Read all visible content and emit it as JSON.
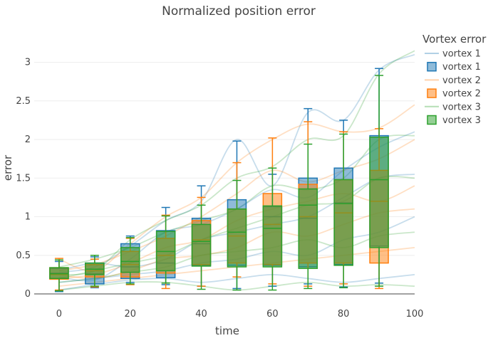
{
  "chart_data": {
    "type": "box",
    "title": "Normalized position error",
    "xlabel": "time",
    "ylabel": "error",
    "xlim": [
      -7,
      100
    ],
    "ylim": [
      0,
      3.3
    ],
    "x_ticks": [
      0,
      20,
      40,
      60,
      80,
      100
    ],
    "y_ticks": [
      0,
      0.5,
      1,
      1.5,
      2,
      2.5,
      3
    ],
    "grid": true,
    "legend": {
      "title": "Vortex error",
      "position": "top-right",
      "items": [
        {
          "label": "vortex 1",
          "kind": "line",
          "color": "#1f77b4"
        },
        {
          "label": "vortex 1",
          "kind": "box",
          "color": "#1f77b4"
        },
        {
          "label": "vortex 2",
          "kind": "line",
          "color": "#ff7f0e"
        },
        {
          "label": "vortex 2",
          "kind": "box",
          "color": "#ff7f0e"
        },
        {
          "label": "vortex 3",
          "kind": "line",
          "color": "#2ca02c"
        },
        {
          "label": "vortex 3",
          "kind": "box",
          "color": "#2ca02c"
        }
      ]
    },
    "series": [
      {
        "name": "vortex 1",
        "color": "#1f77b4",
        "boxes": [
          {
            "x": 0,
            "lower": 0.03,
            "q1": 0.2,
            "median": 0.27,
            "q3": 0.33,
            "upper": 0.42
          },
          {
            "x": 10,
            "lower": 0.08,
            "q1": 0.13,
            "median": 0.26,
            "q3": 0.4,
            "upper": 0.48
          },
          {
            "x": 20,
            "lower": 0.15,
            "q1": 0.2,
            "median": 0.35,
            "q3": 0.65,
            "upper": 0.75
          },
          {
            "x": 30,
            "lower": 0.12,
            "q1": 0.21,
            "median": 0.4,
            "q3": 0.82,
            "upper": 1.12
          },
          {
            "x": 40,
            "lower": 0.1,
            "q1": 0.37,
            "median": 0.65,
            "q3": 0.98,
            "upper": 1.4
          },
          {
            "x": 50,
            "lower": 0.07,
            "q1": 0.37,
            "median": 0.8,
            "q3": 1.22,
            "upper": 1.98
          },
          {
            "x": 60,
            "lower": 0.1,
            "q1": 0.37,
            "median": 1.0,
            "q3": 1.13,
            "upper": 1.55
          },
          {
            "x": 70,
            "lower": 0.13,
            "q1": 0.35,
            "median": 0.98,
            "q3": 1.5,
            "upper": 2.4
          },
          {
            "x": 80,
            "lower": 0.09,
            "q1": 0.38,
            "median": 1.18,
            "q3": 1.63,
            "upper": 2.25
          },
          {
            "x": 90,
            "lower": 0.14,
            "q1": 0.62,
            "median": 1.48,
            "q3": 2.05,
            "upper": 2.92
          }
        ],
        "traces": [
          {
            "x": [
              0,
              10,
              20,
              30,
              40,
              50,
              60,
              70,
              80,
              90,
              100
            ],
            "y": [
              0.28,
              0.35,
              0.62,
              0.95,
              1.2,
              2.0,
              1.4,
              2.35,
              2.25,
              2.9,
              3.1
            ]
          },
          {
            "x": [
              0,
              10,
              20,
              30,
              40,
              50,
              60,
              70,
              80,
              90,
              100
            ],
            "y": [
              0.22,
              0.18,
              0.45,
              0.8,
              0.9,
              1.1,
              1.35,
              1.25,
              1.6,
              1.9,
              2.1
            ]
          },
          {
            "x": [
              0,
              10,
              20,
              30,
              40,
              50,
              60,
              70,
              80,
              90,
              100
            ],
            "y": [
              0.3,
              0.4,
              0.35,
              0.45,
              0.7,
              0.8,
              0.9,
              1.0,
              1.25,
              1.5,
              1.55
            ]
          },
          {
            "x": [
              0,
              10,
              20,
              30,
              40,
              50,
              60,
              70,
              80,
              90,
              100
            ],
            "y": [
              0.15,
              0.2,
              0.25,
              0.3,
              0.4,
              0.45,
              0.55,
              0.5,
              0.7,
              0.8,
              1.0
            ]
          },
          {
            "x": [
              0,
              10,
              20,
              30,
              40,
              50,
              60,
              70,
              80,
              90,
              100
            ],
            "y": [
              0.05,
              0.12,
              0.18,
              0.2,
              0.15,
              0.2,
              0.25,
              0.2,
              0.15,
              0.2,
              0.25
            ]
          }
        ]
      },
      {
        "name": "vortex 2",
        "color": "#ff7f0e",
        "boxes": [
          {
            "x": 0,
            "lower": 0.05,
            "q1": 0.19,
            "median": 0.25,
            "q3": 0.34,
            "upper": 0.46
          },
          {
            "x": 10,
            "lower": 0.09,
            "q1": 0.22,
            "median": 0.3,
            "q3": 0.38,
            "upper": 0.45
          },
          {
            "x": 20,
            "lower": 0.12,
            "q1": 0.22,
            "median": 0.38,
            "q3": 0.55,
            "upper": 0.72
          },
          {
            "x": 30,
            "lower": 0.07,
            "q1": 0.27,
            "median": 0.5,
            "q3": 0.72,
            "upper": 1.02
          },
          {
            "x": 40,
            "lower": 0.1,
            "q1": 0.38,
            "median": 0.7,
            "q3": 0.95,
            "upper": 1.25
          },
          {
            "x": 50,
            "lower": 0.22,
            "q1": 0.4,
            "median": 0.75,
            "q3": 1.1,
            "upper": 1.7
          },
          {
            "x": 60,
            "lower": 0.13,
            "q1": 0.38,
            "median": 0.9,
            "q3": 1.3,
            "upper": 2.02
          },
          {
            "x": 70,
            "lower": 0.1,
            "q1": 0.4,
            "median": 1.0,
            "q3": 1.42,
            "upper": 2.23
          },
          {
            "x": 80,
            "lower": 0.13,
            "q1": 0.4,
            "median": 1.05,
            "q3": 1.48,
            "upper": 2.1
          },
          {
            "x": 90,
            "lower": 0.07,
            "q1": 0.4,
            "median": 1.2,
            "q3": 1.6,
            "upper": 2.14
          }
        ],
        "traces": [
          {
            "x": [
              0,
              10,
              20,
              30,
              40,
              50,
              60,
              70,
              80,
              90,
              100
            ],
            "y": [
              0.45,
              0.3,
              0.65,
              1.0,
              1.25,
              1.7,
              2.0,
              2.2,
              2.1,
              2.15,
              2.45
            ]
          },
          {
            "x": [
              0,
              10,
              20,
              30,
              40,
              50,
              60,
              70,
              80,
              90,
              100
            ],
            "y": [
              0.3,
              0.38,
              0.55,
              0.75,
              1.0,
              1.3,
              1.6,
              1.45,
              1.6,
              1.75,
              2.0
            ]
          },
          {
            "x": [
              0,
              10,
              20,
              30,
              40,
              50,
              60,
              70,
              80,
              90,
              100
            ],
            "y": [
              0.2,
              0.25,
              0.4,
              0.6,
              0.7,
              0.95,
              1.1,
              1.2,
              1.3,
              1.2,
              1.4
            ]
          },
          {
            "x": [
              0,
              10,
              20,
              30,
              40,
              50,
              60,
              70,
              80,
              90,
              100
            ],
            "y": [
              0.25,
              0.2,
              0.3,
              0.45,
              0.5,
              0.6,
              0.8,
              0.75,
              0.9,
              1.05,
              1.1
            ]
          },
          {
            "x": [
              0,
              10,
              20,
              30,
              40,
              50,
              60,
              70,
              80,
              90,
              100
            ],
            "y": [
              0.1,
              0.15,
              0.2,
              0.25,
              0.3,
              0.35,
              0.4,
              0.45,
              0.5,
              0.55,
              0.6
            ]
          }
        ]
      },
      {
        "name": "vortex 3",
        "color": "#2ca02c",
        "boxes": [
          {
            "x": 0,
            "lower": 0.04,
            "q1": 0.2,
            "median": 0.26,
            "q3": 0.34,
            "upper": 0.44
          },
          {
            "x": 10,
            "lower": 0.1,
            "q1": 0.25,
            "median": 0.32,
            "q3": 0.4,
            "upper": 0.5
          },
          {
            "x": 20,
            "lower": 0.13,
            "q1": 0.28,
            "median": 0.42,
            "q3": 0.6,
            "upper": 0.73
          },
          {
            "x": 30,
            "lower": 0.14,
            "q1": 0.3,
            "median": 0.55,
            "q3": 0.81,
            "upper": 1.01
          },
          {
            "x": 40,
            "lower": 0.06,
            "q1": 0.36,
            "median": 0.68,
            "q3": 0.9,
            "upper": 1.15
          },
          {
            "x": 50,
            "lower": 0.05,
            "q1": 0.35,
            "median": 0.8,
            "q3": 1.1,
            "upper": 1.47
          },
          {
            "x": 60,
            "lower": 0.05,
            "q1": 0.35,
            "median": 0.85,
            "q3": 1.14,
            "upper": 1.63
          },
          {
            "x": 70,
            "lower": 0.07,
            "q1": 0.33,
            "median": 1.15,
            "q3": 1.36,
            "upper": 1.94
          },
          {
            "x": 80,
            "lower": 0.08,
            "q1": 0.37,
            "median": 1.17,
            "q3": 1.48,
            "upper": 2.07
          },
          {
            "x": 90,
            "lower": 0.1,
            "q1": 0.6,
            "median": 1.48,
            "q3": 2.03,
            "upper": 2.83
          }
        ],
        "traces": [
          {
            "x": [
              0,
              10,
              20,
              30,
              40,
              50,
              60,
              70,
              80,
              90,
              100
            ],
            "y": [
              0.25,
              0.3,
              0.7,
              0.95,
              1.15,
              1.5,
              1.65,
              2.0,
              2.05,
              2.85,
              3.15
            ]
          },
          {
            "x": [
              0,
              10,
              20,
              30,
              40,
              50,
              60,
              70,
              80,
              90,
              100
            ],
            "y": [
              0.35,
              0.45,
              0.6,
              0.8,
              0.95,
              1.1,
              1.4,
              1.35,
              1.5,
              2.0,
              2.05
            ]
          },
          {
            "x": [
              0,
              10,
              20,
              30,
              40,
              50,
              60,
              70,
              80,
              90,
              100
            ],
            "y": [
              0.2,
              0.3,
              0.4,
              0.5,
              0.7,
              0.85,
              1.0,
              1.15,
              1.2,
              1.5,
              1.5
            ]
          },
          {
            "x": [
              0,
              10,
              20,
              30,
              40,
              50,
              60,
              70,
              80,
              90,
              100
            ],
            "y": [
              0.15,
              0.2,
              0.28,
              0.35,
              0.5,
              0.55,
              0.6,
              0.7,
              0.6,
              0.75,
              0.8
            ]
          },
          {
            "x": [
              0,
              10,
              20,
              30,
              40,
              50,
              60,
              70,
              80,
              90,
              100
            ],
            "y": [
              0.05,
              0.1,
              0.15,
              0.15,
              0.1,
              0.05,
              0.1,
              0.15,
              0.1,
              0.12,
              0.1
            ]
          }
        ]
      }
    ]
  }
}
